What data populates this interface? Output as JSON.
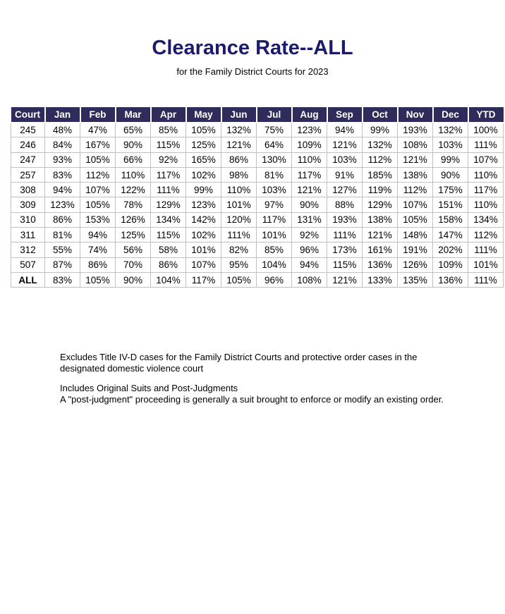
{
  "page": {
    "title": "Clearance Rate--ALL",
    "subtitle": "for the Family District Courts for 2023"
  },
  "colors": {
    "header_bg": "#2D2C5A",
    "title_text": "#1B1B6E",
    "grid_border": "#C0C0C0"
  },
  "table": {
    "columns": [
      "Court",
      "Jan",
      "Feb",
      "Mar",
      "Apr",
      "May",
      "Jun",
      "Jul",
      "Aug",
      "Sep",
      "Oct",
      "Nov",
      "Dec",
      "YTD"
    ],
    "rows": [
      {
        "court": "245",
        "bold": false,
        "values": [
          "48%",
          "47%",
          "65%",
          "85%",
          "105%",
          "132%",
          "75%",
          "123%",
          "94%",
          "99%",
          "193%",
          "132%",
          "100%"
        ]
      },
      {
        "court": "246",
        "bold": false,
        "values": [
          "84%",
          "167%",
          "90%",
          "115%",
          "125%",
          "121%",
          "64%",
          "109%",
          "121%",
          "132%",
          "108%",
          "103%",
          "111%"
        ]
      },
      {
        "court": "247",
        "bold": false,
        "values": [
          "93%",
          "105%",
          "66%",
          "92%",
          "165%",
          "86%",
          "130%",
          "110%",
          "103%",
          "112%",
          "121%",
          "99%",
          "107%"
        ]
      },
      {
        "court": "257",
        "bold": false,
        "values": [
          "83%",
          "112%",
          "110%",
          "117%",
          "102%",
          "98%",
          "81%",
          "117%",
          "91%",
          "185%",
          "138%",
          "90%",
          "110%"
        ]
      },
      {
        "court": "308",
        "bold": false,
        "values": [
          "94%",
          "107%",
          "122%",
          "111%",
          "99%",
          "110%",
          "103%",
          "121%",
          "127%",
          "119%",
          "112%",
          "175%",
          "117%"
        ]
      },
      {
        "court": "309",
        "bold": false,
        "values": [
          "123%",
          "105%",
          "78%",
          "129%",
          "123%",
          "101%",
          "97%",
          "90%",
          "88%",
          "129%",
          "107%",
          "151%",
          "110%"
        ]
      },
      {
        "court": "310",
        "bold": false,
        "values": [
          "86%",
          "153%",
          "126%",
          "134%",
          "142%",
          "120%",
          "117%",
          "131%",
          "193%",
          "138%",
          "105%",
          "158%",
          "134%"
        ]
      },
      {
        "court": "311",
        "bold": false,
        "values": [
          "81%",
          "94%",
          "125%",
          "115%",
          "102%",
          "111%",
          "101%",
          "92%",
          "111%",
          "121%",
          "148%",
          "147%",
          "112%"
        ]
      },
      {
        "court": "312",
        "bold": false,
        "values": [
          "55%",
          "74%",
          "56%",
          "58%",
          "101%",
          "82%",
          "85%",
          "96%",
          "173%",
          "161%",
          "191%",
          "202%",
          "111%"
        ]
      },
      {
        "court": "507",
        "bold": false,
        "values": [
          "87%",
          "86%",
          "70%",
          "86%",
          "107%",
          "95%",
          "104%",
          "94%",
          "115%",
          "136%",
          "126%",
          "109%",
          "101%"
        ]
      },
      {
        "court": "ALL",
        "bold": true,
        "values": [
          "83%",
          "105%",
          "90%",
          "104%",
          "117%",
          "105%",
          "96%",
          "108%",
          "121%",
          "133%",
          "135%",
          "136%",
          "111%"
        ]
      }
    ]
  },
  "footnotes": {
    "exclusions_lines": [
      "Excludes Title IV-D cases for the Family District Courts and protective order cases in the",
      "designated domestic violence court"
    ],
    "inclusions_lines": [
      "Includes Original Suits and Post-Judgments",
      "A \"post-judgment\" proceeding is generally a suit brought to enforce or modify an existing order."
    ]
  }
}
